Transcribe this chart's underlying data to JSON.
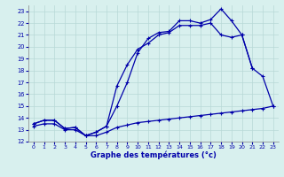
{
  "xlabel": "Graphe des températures (°c)",
  "background_color": "#d8f0ee",
  "grid_color": "#b8d8d6",
  "line_color": "#0000aa",
  "x_ticks": [
    0,
    1,
    2,
    3,
    4,
    5,
    6,
    7,
    8,
    9,
    10,
    11,
    12,
    13,
    14,
    15,
    16,
    17,
    18,
    19,
    20,
    21,
    22,
    23
  ],
  "y_ticks": [
    12,
    13,
    14,
    15,
    16,
    17,
    18,
    19,
    20,
    21,
    22,
    23
  ],
  "xlim": [
    -0.5,
    23.5
  ],
  "ylim": [
    12,
    23.5
  ],
  "line1_x": [
    0,
    1,
    2,
    3,
    4,
    5,
    6,
    7,
    8,
    9,
    10,
    11,
    12,
    13,
    14,
    15,
    16,
    17,
    18,
    19,
    20,
    21
  ],
  "line1_y": [
    13.5,
    13.8,
    13.8,
    13.1,
    13.2,
    12.5,
    12.8,
    13.3,
    15.0,
    17.0,
    19.5,
    20.7,
    21.2,
    21.3,
    22.2,
    22.2,
    22.0,
    22.3,
    23.2,
    22.2,
    21.0,
    18.2
  ],
  "line2_x": [
    0,
    1,
    2,
    3,
    4,
    5,
    6,
    7,
    8,
    9,
    10,
    11,
    12,
    13,
    14,
    15,
    16,
    17,
    18,
    19,
    20,
    21,
    22,
    23
  ],
  "line2_y": [
    13.5,
    13.8,
    13.8,
    13.1,
    13.2,
    12.5,
    12.8,
    13.3,
    16.7,
    18.5,
    19.8,
    20.3,
    21.0,
    21.2,
    21.8,
    21.8,
    21.8,
    22.0,
    21.0,
    20.8,
    21.0,
    18.2,
    17.5,
    15.0
  ],
  "line3_x": [
    0,
    1,
    2,
    3,
    4,
    5,
    6,
    7,
    8,
    9,
    10,
    11,
    12,
    13,
    14,
    15,
    16,
    17,
    18,
    19,
    20,
    21,
    22,
    23
  ],
  "line3_y": [
    13.3,
    13.5,
    13.5,
    13.0,
    13.0,
    12.5,
    12.5,
    12.8,
    13.2,
    13.4,
    13.6,
    13.7,
    13.8,
    13.9,
    14.0,
    14.1,
    14.2,
    14.3,
    14.4,
    14.5,
    14.6,
    14.7,
    14.8,
    15.0
  ]
}
